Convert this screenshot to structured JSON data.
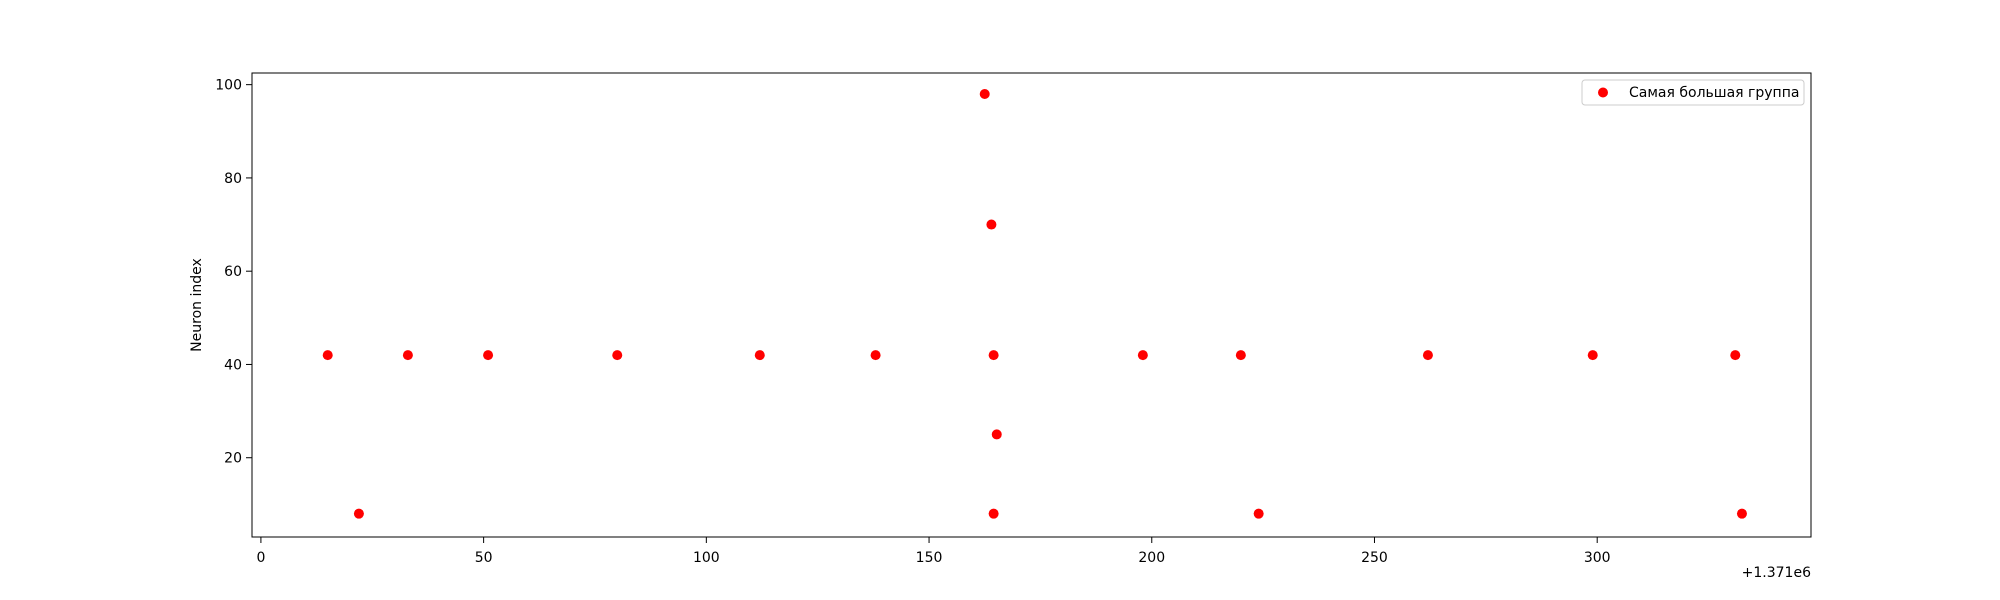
{
  "chart_data": {
    "type": "scatter",
    "title": "",
    "xlabel": "",
    "ylabel": "Neuron index",
    "x_offset_label": "+1.371e6",
    "xlim": [
      -2,
      348
    ],
    "ylim": [
      3,
      102.5
    ],
    "xticks": [
      0,
      50,
      100,
      150,
      200,
      250,
      300
    ],
    "yticks": [
      20,
      40,
      60,
      80,
      100
    ],
    "grid": false,
    "legend_position": "upper right",
    "series": [
      {
        "name": "Самая большая группа",
        "color": "#ff0000",
        "points": [
          {
            "x": 15,
            "y": 42
          },
          {
            "x": 22,
            "y": 8
          },
          {
            "x": 33,
            "y": 42
          },
          {
            "x": 51,
            "y": 42
          },
          {
            "x": 80,
            "y": 42
          },
          {
            "x": 112,
            "y": 42
          },
          {
            "x": 138,
            "y": 42
          },
          {
            "x": 162.5,
            "y": 98
          },
          {
            "x": 164,
            "y": 70
          },
          {
            "x": 164.5,
            "y": 42
          },
          {
            "x": 165.2,
            "y": 25
          },
          {
            "x": 164.5,
            "y": 8
          },
          {
            "x": 198,
            "y": 42
          },
          {
            "x": 220,
            "y": 42
          },
          {
            "x": 224,
            "y": 8
          },
          {
            "x": 262,
            "y": 42
          },
          {
            "x": 299,
            "y": 42
          },
          {
            "x": 331,
            "y": 42
          },
          {
            "x": 332.5,
            "y": 8
          }
        ]
      }
    ]
  }
}
